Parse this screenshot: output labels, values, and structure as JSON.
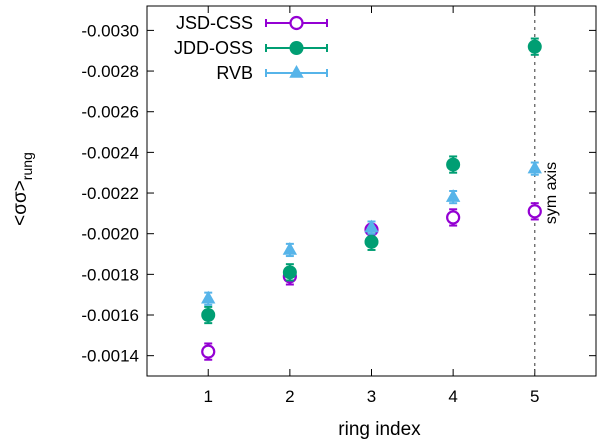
{
  "chart_data": {
    "type": "scatter",
    "title": "",
    "xlabel": "ring index",
    "ylabel": "<σσ>",
    "ylabel_sub": "rung",
    "xlim": [
      0.25,
      5.75
    ],
    "ylim": [
      -0.0013,
      -0.00312
    ],
    "y_reversed": true,
    "xticks": [
      1,
      2,
      3,
      4,
      5
    ],
    "xtick_labels": [
      "1",
      "2",
      "3",
      "4",
      "5"
    ],
    "yticks": [
      -0.0014,
      -0.0016,
      -0.0018,
      -0.002,
      -0.0022,
      -0.0024,
      -0.0026,
      -0.0028,
      -0.003
    ],
    "ytick_labels": [
      "-0.0014",
      "-0.0016",
      "-0.0018",
      "-0.0020",
      "-0.0022",
      "-0.0024",
      "-0.0026",
      "-0.0028",
      "-0.0030"
    ],
    "grid": false,
    "legend_position": "top-left",
    "series": [
      {
        "name": "JSD-CSS",
        "color": "#9400d3",
        "marker": "open-circle",
        "x": [
          1,
          2,
          3,
          4,
          5
        ],
        "y": [
          -0.00142,
          -0.00179,
          -0.00202,
          -0.00208,
          -0.00211
        ],
        "yerr": [
          4e-05,
          4e-05,
          4e-05,
          4e-05,
          4e-05
        ]
      },
      {
        "name": "JDD-OSS",
        "color": "#009e73",
        "marker": "filled-circle",
        "x": [
          1,
          2,
          3,
          4,
          5
        ],
        "y": [
          -0.0016,
          -0.00181,
          -0.00196,
          -0.00234,
          -0.00292
        ],
        "yerr": [
          4e-05,
          4e-05,
          4e-05,
          4e-05,
          4e-05
        ]
      },
      {
        "name": "RVB",
        "color": "#56b4e9",
        "marker": "filled-triangle",
        "x": [
          1,
          2,
          3,
          4,
          5
        ],
        "y": [
          -0.00168,
          -0.00192,
          -0.00203,
          -0.00218,
          -0.00232
        ],
        "yerr": [
          3e-05,
          3e-05,
          3e-05,
          3e-05,
          3e-05
        ]
      }
    ],
    "annotations": [
      {
        "text": "sym axis",
        "x": 5,
        "style": "dashed-vertical"
      }
    ]
  }
}
